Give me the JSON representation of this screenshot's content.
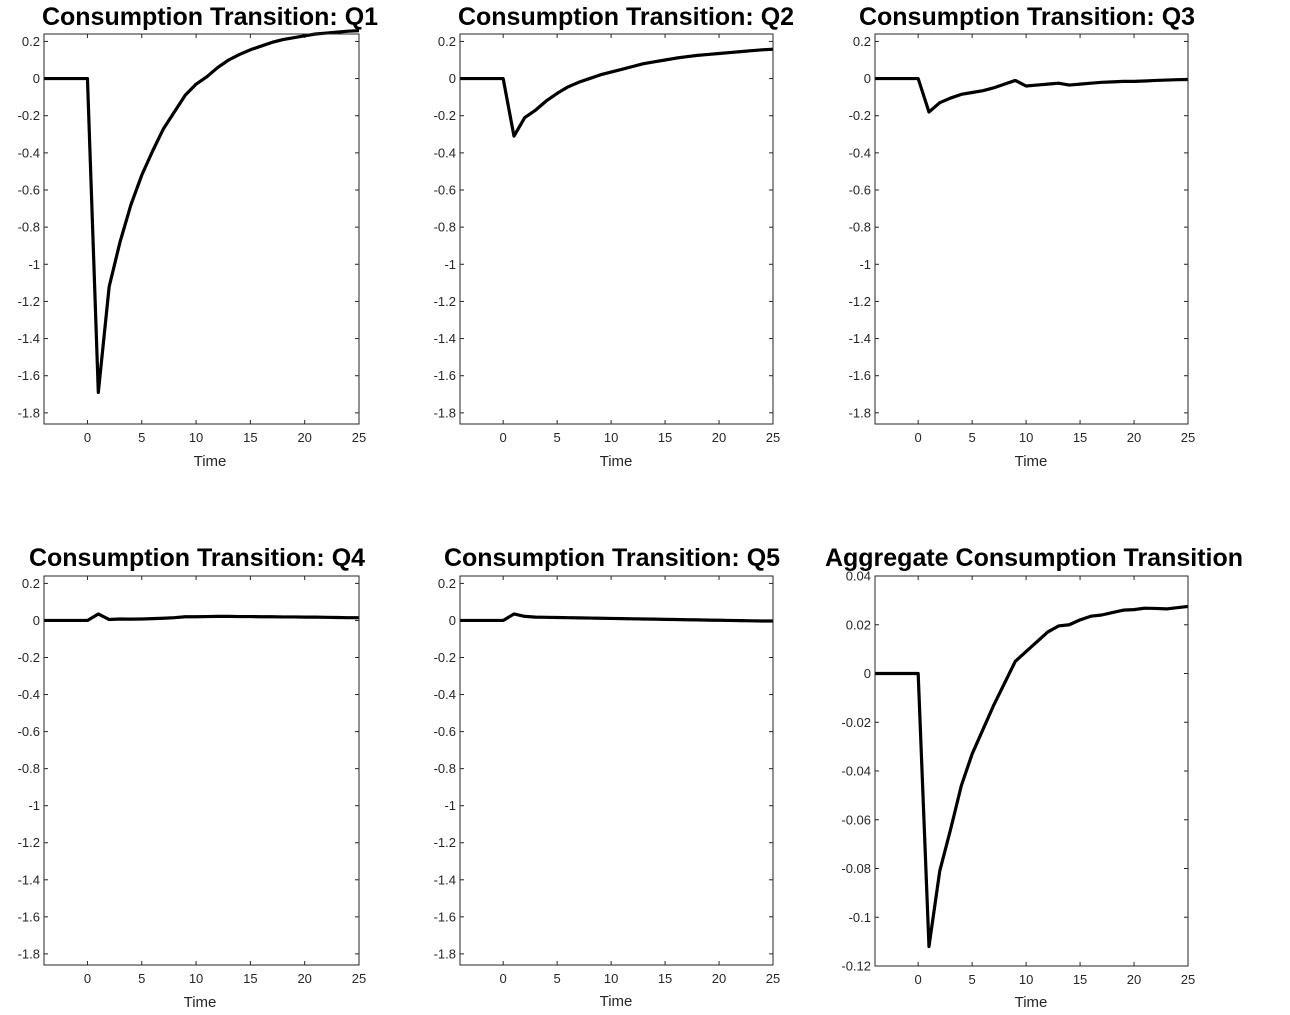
{
  "colors": {
    "line": "#000000",
    "axis": "#262626",
    "background": "#ffffff"
  },
  "chart_data": [
    {
      "type": "line",
      "title": "Consumption Transition: Q1",
      "xlabel": "Time",
      "ylabel": "",
      "xlim": [
        -4,
        25
      ],
      "ylim": [
        -1.86,
        0.24
      ],
      "xticks": [
        0,
        5,
        10,
        15,
        20,
        25
      ],
      "yticks": [
        0.2,
        0,
        -0.2,
        -0.4,
        -0.6,
        -0.8,
        -1,
        -1.2,
        -1.4,
        -1.6,
        -1.8
      ],
      "yticklabels": [
        "0.2",
        "0",
        "-0.2",
        "-0.4",
        "-0.6",
        "-0.8",
        "-1",
        "-1.2",
        "-1.4",
        "-1.6",
        "-1.8"
      ],
      "grid": false,
      "series": [
        {
          "x": [
            -4,
            -3,
            -2,
            -1,
            0,
            1,
            2,
            3,
            4,
            5,
            6,
            7,
            8,
            9,
            10,
            11,
            12,
            13,
            14,
            15,
            16,
            17,
            18,
            19,
            20,
            21,
            22,
            23,
            24,
            25
          ],
          "y": [
            0,
            0,
            0,
            0,
            0,
            -1.69,
            -1.12,
            -0.88,
            -0.68,
            -0.52,
            -0.39,
            -0.27,
            -0.18,
            -0.09,
            -0.03,
            0.01,
            0.06,
            0.1,
            0.13,
            0.155,
            0.175,
            0.195,
            0.21,
            0.22,
            0.23,
            0.24,
            0.245,
            0.25,
            0.255,
            0.258
          ]
        }
      ]
    },
    {
      "type": "line",
      "title": "Consumption Transition: Q2",
      "xlabel": "Time",
      "ylabel": "",
      "xlim": [
        -4,
        25
      ],
      "ylim": [
        -1.86,
        0.24
      ],
      "xticks": [
        0,
        5,
        10,
        15,
        20,
        25
      ],
      "yticks": [
        0.2,
        0,
        -0.2,
        -0.4,
        -0.6,
        -0.8,
        -1,
        -1.2,
        -1.4,
        -1.6,
        -1.8
      ],
      "yticklabels": [
        "0.2",
        "0",
        "-0.2",
        "-0.4",
        "-0.6",
        "-0.8",
        "-1",
        "-1.2",
        "-1.4",
        "-1.6",
        "-1.8"
      ],
      "grid": false,
      "series": [
        {
          "x": [
            -4,
            -3,
            -2,
            -1,
            0,
            1,
            2,
            3,
            4,
            5,
            6,
            7,
            8,
            9,
            10,
            11,
            12,
            13,
            14,
            15,
            16,
            17,
            18,
            19,
            20,
            21,
            22,
            23,
            24,
            25
          ],
          "y": [
            0,
            0,
            0,
            0,
            0,
            -0.31,
            -0.21,
            -0.17,
            -0.12,
            -0.08,
            -0.045,
            -0.02,
            0,
            0.02,
            0.035,
            0.05,
            0.065,
            0.08,
            0.09,
            0.1,
            0.11,
            0.118,
            0.125,
            0.13,
            0.135,
            0.14,
            0.145,
            0.15,
            0.155,
            0.158
          ]
        }
      ]
    },
    {
      "type": "line",
      "title": "Consumption Transition: Q3",
      "xlabel": "Time",
      "ylabel": "",
      "xlim": [
        -4,
        25
      ],
      "ylim": [
        -1.86,
        0.24
      ],
      "xticks": [
        0,
        5,
        10,
        15,
        20,
        25
      ],
      "yticks": [
        0.2,
        0,
        -0.2,
        -0.4,
        -0.6,
        -0.8,
        -1,
        -1.2,
        -1.4,
        -1.6,
        -1.8
      ],
      "yticklabels": [
        "0.2",
        "0",
        "-0.2",
        "-0.4",
        "-0.6",
        "-0.8",
        "-1",
        "-1.2",
        "-1.4",
        "-1.6",
        "-1.8"
      ],
      "grid": false,
      "series": [
        {
          "x": [
            -4,
            -3,
            -2,
            -1,
            0,
            1,
            2,
            3,
            4,
            5,
            6,
            7,
            8,
            9,
            10,
            11,
            12,
            13,
            14,
            15,
            16,
            17,
            18,
            19,
            20,
            21,
            22,
            23,
            24,
            25
          ],
          "y": [
            0,
            0,
            0,
            0,
            0,
            -0.18,
            -0.13,
            -0.105,
            -0.085,
            -0.075,
            -0.065,
            -0.05,
            -0.03,
            -0.01,
            -0.04,
            -0.035,
            -0.03,
            -0.025,
            -0.035,
            -0.03,
            -0.025,
            -0.02,
            -0.018,
            -0.015,
            -0.015,
            -0.013,
            -0.01,
            -0.008,
            -0.006,
            -0.005
          ]
        }
      ]
    },
    {
      "type": "line",
      "title": "Consumption Transition: Q4",
      "xlabel": "Time",
      "ylabel": "",
      "xlim": [
        -4,
        25
      ],
      "ylim": [
        -1.86,
        0.24
      ],
      "xticks": [
        0,
        5,
        10,
        15,
        20,
        25
      ],
      "yticks": [
        0.2,
        0,
        -0.2,
        -0.4,
        -0.6,
        -0.8,
        -1,
        -1.2,
        -1.4,
        -1.6,
        -1.8
      ],
      "yticklabels": [
        "0.2",
        "0",
        "-0.2",
        "-0.4",
        "-0.6",
        "-0.8",
        "-1",
        "-1.2",
        "-1.4",
        "-1.6",
        "-1.8"
      ],
      "grid": false,
      "series": [
        {
          "x": [
            -4,
            -3,
            -2,
            -1,
            0,
            1,
            2,
            3,
            4,
            5,
            6,
            7,
            8,
            9,
            10,
            11,
            12,
            13,
            14,
            15,
            16,
            17,
            18,
            19,
            20,
            21,
            22,
            23,
            24,
            25
          ],
          "y": [
            0,
            0,
            0,
            0,
            0,
            0.035,
            0.005,
            0.008,
            0.007,
            0.008,
            0.01,
            0.012,
            0.015,
            0.02,
            0.02,
            0.021,
            0.022,
            0.022,
            0.021,
            0.021,
            0.02,
            0.02,
            0.019,
            0.019,
            0.018,
            0.018,
            0.017,
            0.016,
            0.015,
            0.015
          ]
        }
      ]
    },
    {
      "type": "line",
      "title": "Consumption Transition: Q5",
      "xlabel": "Time",
      "ylabel": "",
      "xlim": [
        -4,
        25
      ],
      "ylim": [
        -1.86,
        0.24
      ],
      "xticks": [
        0,
        5,
        10,
        15,
        20,
        25
      ],
      "yticks": [
        0.2,
        0,
        -0.2,
        -0.4,
        -0.6,
        -0.8,
        -1,
        -1.2,
        -1.4,
        -1.6,
        -1.8
      ],
      "yticklabels": [
        "0.2",
        "0",
        "-0.2",
        "-0.4",
        "-0.6",
        "-0.8",
        "-1",
        "-1.2",
        "-1.4",
        "-1.6",
        "-1.8"
      ],
      "grid": false,
      "series": [
        {
          "x": [
            -4,
            -3,
            -2,
            -1,
            0,
            1,
            2,
            3,
            4,
            5,
            6,
            7,
            8,
            9,
            10,
            11,
            12,
            13,
            14,
            15,
            16,
            17,
            18,
            19,
            20,
            21,
            22,
            23,
            24,
            25
          ],
          "y": [
            0,
            0,
            0,
            0,
            0,
            0.035,
            0.022,
            0.018,
            0.017,
            0.016,
            0.015,
            0.014,
            0.013,
            0.012,
            0.011,
            0.01,
            0.009,
            0.008,
            0.007,
            0.006,
            0.005,
            0.004,
            0.003,
            0.002,
            0.001,
            0,
            -0.001,
            -0.002,
            -0.003,
            -0.003
          ]
        }
      ]
    },
    {
      "type": "line",
      "title": "Aggregate Consumption Transition",
      "xlabel": "Time",
      "ylabel": "",
      "xlim": [
        -4,
        25
      ],
      "ylim": [
        -0.12,
        0.04
      ],
      "xticks": [
        0,
        5,
        10,
        15,
        20,
        25
      ],
      "yticks": [
        0.04,
        0.02,
        0,
        -0.02,
        -0.04,
        -0.06,
        -0.08,
        -0.1,
        -0.12
      ],
      "yticklabels": [
        "0.04",
        "0.02",
        "0",
        "-0.02",
        "-0.04",
        "-0.06",
        "-0.08",
        "-0.1",
        "-0.12"
      ],
      "grid": false,
      "series": [
        {
          "x": [
            -4,
            -3,
            -2,
            -1,
            0,
            1,
            2,
            3,
            4,
            5,
            6,
            7,
            8,
            9,
            10,
            11,
            12,
            13,
            14,
            15,
            16,
            17,
            18,
            19,
            20,
            21,
            22,
            23,
            24,
            25
          ],
          "y": [
            0,
            0,
            0,
            0,
            0,
            -0.112,
            -0.081,
            -0.064,
            -0.046,
            -0.033,
            -0.023,
            -0.013,
            -0.004,
            0.005,
            0.009,
            0.013,
            0.017,
            0.0195,
            0.02,
            0.022,
            0.0235,
            0.024,
            0.025,
            0.026,
            0.0262,
            0.0268,
            0.0267,
            0.0265,
            0.027,
            0.0275
          ]
        }
      ]
    }
  ]
}
